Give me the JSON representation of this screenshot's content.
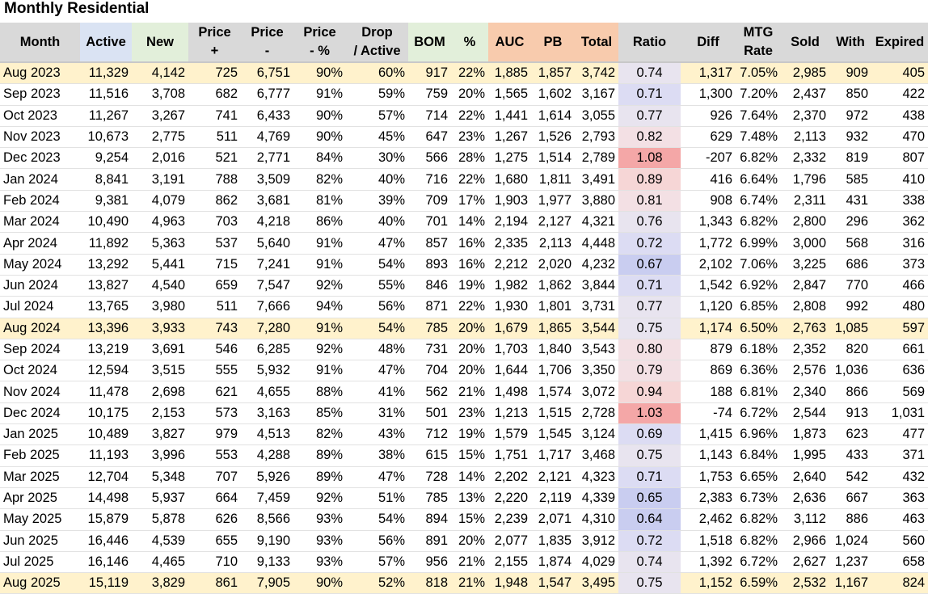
{
  "title": "Monthly Residential",
  "headers": {
    "month": "Month",
    "active": "Active",
    "new": "New",
    "price_plus": [
      "Price",
      "+"
    ],
    "price_minus": [
      "Price",
      "-"
    ],
    "price_pct": [
      "Price",
      "- %"
    ],
    "drop_active": [
      "Drop",
      "/ Active"
    ],
    "bom": "BOM",
    "pct": "%",
    "auc": "AUC",
    "pb": "PB",
    "total": "Total",
    "ratio": "Ratio",
    "diff": "Diff",
    "mtg_rate": [
      "MTG",
      "Rate"
    ],
    "sold": "Sold",
    "with": "With",
    "expired": "Expired"
  },
  "colors": {
    "highlight_row": "#fff2cc",
    "ratio_low": "#c9cdf0",
    "ratio_mid": "#e8e4ef",
    "ratio_high": "#f4a7a7"
  },
  "rows": [
    {
      "month": "Aug 2023",
      "active": "11,329",
      "new": "4,142",
      "price_plus": "725",
      "price_minus": "6,751",
      "price_pct": "90%",
      "drop_active": "60%",
      "bom": "917",
      "pct": "22%",
      "auc": "1,885",
      "pb": "1,857",
      "total": "3,742",
      "ratio": "0.74",
      "diff": "1,317",
      "mtg_rate": "7.05%",
      "sold": "2,985",
      "with": "909",
      "expired": "405",
      "highlight": true
    },
    {
      "month": "Sep 2023",
      "active": "11,516",
      "new": "3,708",
      "price_plus": "682",
      "price_minus": "6,777",
      "price_pct": "91%",
      "drop_active": "59%",
      "bom": "759",
      "pct": "20%",
      "auc": "1,565",
      "pb": "1,602",
      "total": "3,167",
      "ratio": "0.71",
      "diff": "1,300",
      "mtg_rate": "7.20%",
      "sold": "2,437",
      "with": "850",
      "expired": "422"
    },
    {
      "month": "Oct 2023",
      "active": "11,267",
      "new": "3,267",
      "price_plus": "741",
      "price_minus": "6,433",
      "price_pct": "90%",
      "drop_active": "57%",
      "bom": "714",
      "pct": "22%",
      "auc": "1,441",
      "pb": "1,614",
      "total": "3,055",
      "ratio": "0.77",
      "diff": "926",
      "mtg_rate": "7.64%",
      "sold": "2,370",
      "with": "972",
      "expired": "438"
    },
    {
      "month": "Nov 2023",
      "active": "10,673",
      "new": "2,775",
      "price_plus": "511",
      "price_minus": "4,769",
      "price_pct": "90%",
      "drop_active": "45%",
      "bom": "647",
      "pct": "23%",
      "auc": "1,267",
      "pb": "1,526",
      "total": "2,793",
      "ratio": "0.82",
      "diff": "629",
      "mtg_rate": "7.48%",
      "sold": "2,113",
      "with": "932",
      "expired": "470"
    },
    {
      "month": "Dec 2023",
      "active": "9,254",
      "new": "2,016",
      "price_plus": "521",
      "price_minus": "2,771",
      "price_pct": "84%",
      "drop_active": "30%",
      "bom": "566",
      "pct": "28%",
      "auc": "1,275",
      "pb": "1,514",
      "total": "2,789",
      "ratio": "1.08",
      "diff": "-207",
      "mtg_rate": "6.82%",
      "sold": "2,332",
      "with": "819",
      "expired": "807"
    },
    {
      "month": "Jan 2024",
      "active": "8,841",
      "new": "3,191",
      "price_plus": "788",
      "price_minus": "3,509",
      "price_pct": "82%",
      "drop_active": "40%",
      "bom": "716",
      "pct": "22%",
      "auc": "1,680",
      "pb": "1,811",
      "total": "3,491",
      "ratio": "0.89",
      "diff": "416",
      "mtg_rate": "6.64%",
      "sold": "1,796",
      "with": "585",
      "expired": "410"
    },
    {
      "month": "Feb 2024",
      "active": "9,381",
      "new": "4,079",
      "price_plus": "862",
      "price_minus": "3,681",
      "price_pct": "81%",
      "drop_active": "39%",
      "bom": "709",
      "pct": "17%",
      "auc": "1,903",
      "pb": "1,977",
      "total": "3,880",
      "ratio": "0.81",
      "diff": "908",
      "mtg_rate": "6.74%",
      "sold": "2,311",
      "with": "431",
      "expired": "338"
    },
    {
      "month": "Mar 2024",
      "active": "10,490",
      "new": "4,963",
      "price_plus": "703",
      "price_minus": "4,218",
      "price_pct": "86%",
      "drop_active": "40%",
      "bom": "701",
      "pct": "14%",
      "auc": "2,194",
      "pb": "2,127",
      "total": "4,321",
      "ratio": "0.76",
      "diff": "1,343",
      "mtg_rate": "6.82%",
      "sold": "2,800",
      "with": "296",
      "expired": "362"
    },
    {
      "month": "Apr 2024",
      "active": "11,892",
      "new": "5,363",
      "price_plus": "537",
      "price_minus": "5,640",
      "price_pct": "91%",
      "drop_active": "47%",
      "bom": "857",
      "pct": "16%",
      "auc": "2,335",
      "pb": "2,113",
      "total": "4,448",
      "ratio": "0.72",
      "diff": "1,772",
      "mtg_rate": "6.99%",
      "sold": "3,000",
      "with": "568",
      "expired": "316"
    },
    {
      "month": "May 2024",
      "active": "13,292",
      "new": "5,441",
      "price_plus": "715",
      "price_minus": "7,241",
      "price_pct": "91%",
      "drop_active": "54%",
      "bom": "893",
      "pct": "16%",
      "auc": "2,212",
      "pb": "2,020",
      "total": "4,232",
      "ratio": "0.67",
      "diff": "2,102",
      "mtg_rate": "7.06%",
      "sold": "3,225",
      "with": "686",
      "expired": "373"
    },
    {
      "month": "Jun 2024",
      "active": "13,827",
      "new": "4,540",
      "price_plus": "659",
      "price_minus": "7,547",
      "price_pct": "92%",
      "drop_active": "55%",
      "bom": "846",
      "pct": "19%",
      "auc": "1,982",
      "pb": "1,862",
      "total": "3,844",
      "ratio": "0.71",
      "diff": "1,542",
      "mtg_rate": "6.92%",
      "sold": "2,847",
      "with": "770",
      "expired": "466"
    },
    {
      "month": "Jul 2024",
      "active": "13,765",
      "new": "3,980",
      "price_plus": "511",
      "price_minus": "7,666",
      "price_pct": "94%",
      "drop_active": "56%",
      "bom": "871",
      "pct": "22%",
      "auc": "1,930",
      "pb": "1,801",
      "total": "3,731",
      "ratio": "0.77",
      "diff": "1,120",
      "mtg_rate": "6.85%",
      "sold": "2,808",
      "with": "992",
      "expired": "480"
    },
    {
      "month": "Aug 2024",
      "active": "13,396",
      "new": "3,933",
      "price_plus": "743",
      "price_minus": "7,280",
      "price_pct": "91%",
      "drop_active": "54%",
      "bom": "785",
      "pct": "20%",
      "auc": "1,679",
      "pb": "1,865",
      "total": "3,544",
      "ratio": "0.75",
      "diff": "1,174",
      "mtg_rate": "6.50%",
      "sold": "2,763",
      "with": "1,085",
      "expired": "597",
      "highlight": true
    },
    {
      "month": "Sep 2024",
      "active": "13,219",
      "new": "3,691",
      "price_plus": "546",
      "price_minus": "6,285",
      "price_pct": "92%",
      "drop_active": "48%",
      "bom": "731",
      "pct": "20%",
      "auc": "1,703",
      "pb": "1,840",
      "total": "3,543",
      "ratio": "0.80",
      "diff": "879",
      "mtg_rate": "6.18%",
      "sold": "2,352",
      "with": "820",
      "expired": "661"
    },
    {
      "month": "Oct 2024",
      "active": "12,594",
      "new": "3,515",
      "price_plus": "555",
      "price_minus": "5,932",
      "price_pct": "91%",
      "drop_active": "47%",
      "bom": "704",
      "pct": "20%",
      "auc": "1,644",
      "pb": "1,706",
      "total": "3,350",
      "ratio": "0.79",
      "diff": "869",
      "mtg_rate": "6.36%",
      "sold": "2,576",
      "with": "1,036",
      "expired": "636"
    },
    {
      "month": "Nov 2024",
      "active": "11,478",
      "new": "2,698",
      "price_plus": "621",
      "price_minus": "4,655",
      "price_pct": "88%",
      "drop_active": "41%",
      "bom": "562",
      "pct": "21%",
      "auc": "1,498",
      "pb": "1,574",
      "total": "3,072",
      "ratio": "0.94",
      "diff": "188",
      "mtg_rate": "6.81%",
      "sold": "2,340",
      "with": "866",
      "expired": "569"
    },
    {
      "month": "Dec 2024",
      "active": "10,175",
      "new": "2,153",
      "price_plus": "573",
      "price_minus": "3,163",
      "price_pct": "85%",
      "drop_active": "31%",
      "bom": "501",
      "pct": "23%",
      "auc": "1,213",
      "pb": "1,515",
      "total": "2,728",
      "ratio": "1.03",
      "diff": "-74",
      "mtg_rate": "6.72%",
      "sold": "2,544",
      "with": "913",
      "expired": "1,031"
    },
    {
      "month": "Jan 2025",
      "active": "10,489",
      "new": "3,827",
      "price_plus": "979",
      "price_minus": "4,513",
      "price_pct": "82%",
      "drop_active": "43%",
      "bom": "712",
      "pct": "19%",
      "auc": "1,579",
      "pb": "1,545",
      "total": "3,124",
      "ratio": "0.69",
      "diff": "1,415",
      "mtg_rate": "6.96%",
      "sold": "1,873",
      "with": "623",
      "expired": "477"
    },
    {
      "month": "Feb 2025",
      "active": "11,193",
      "new": "3,996",
      "price_plus": "553",
      "price_minus": "4,288",
      "price_pct": "89%",
      "drop_active": "38%",
      "bom": "615",
      "pct": "15%",
      "auc": "1,751",
      "pb": "1,717",
      "total": "3,468",
      "ratio": "0.75",
      "diff": "1,143",
      "mtg_rate": "6.84%",
      "sold": "1,995",
      "with": "433",
      "expired": "371"
    },
    {
      "month": "Mar 2025",
      "active": "12,704",
      "new": "5,348",
      "price_plus": "707",
      "price_minus": "5,926",
      "price_pct": "89%",
      "drop_active": "47%",
      "bom": "728",
      "pct": "14%",
      "auc": "2,202",
      "pb": "2,121",
      "total": "4,323",
      "ratio": "0.71",
      "diff": "1,753",
      "mtg_rate": "6.65%",
      "sold": "2,640",
      "with": "542",
      "expired": "432"
    },
    {
      "month": "Apr 2025",
      "active": "14,498",
      "new": "5,937",
      "price_plus": "664",
      "price_minus": "7,459",
      "price_pct": "92%",
      "drop_active": "51%",
      "bom": "785",
      "pct": "13%",
      "auc": "2,220",
      "pb": "2,119",
      "total": "4,339",
      "ratio": "0.65",
      "diff": "2,383",
      "mtg_rate": "6.73%",
      "sold": "2,636",
      "with": "667",
      "expired": "363"
    },
    {
      "month": "May 2025",
      "active": "15,879",
      "new": "5,878",
      "price_plus": "626",
      "price_minus": "8,566",
      "price_pct": "93%",
      "drop_active": "54%",
      "bom": "894",
      "pct": "15%",
      "auc": "2,239",
      "pb": "2,071",
      "total": "4,310",
      "ratio": "0.64",
      "diff": "2,462",
      "mtg_rate": "6.82%",
      "sold": "3,112",
      "with": "886",
      "expired": "463"
    },
    {
      "month": "Jun 2025",
      "active": "16,446",
      "new": "4,539",
      "price_plus": "655",
      "price_minus": "9,190",
      "price_pct": "93%",
      "drop_active": "56%",
      "bom": "891",
      "pct": "20%",
      "auc": "2,077",
      "pb": "1,835",
      "total": "3,912",
      "ratio": "0.72",
      "diff": "1,518",
      "mtg_rate": "6.82%",
      "sold": "2,966",
      "with": "1,024",
      "expired": "560"
    },
    {
      "month": "Jul 2025",
      "active": "16,146",
      "new": "4,465",
      "price_plus": "710",
      "price_minus": "9,133",
      "price_pct": "93%",
      "drop_active": "57%",
      "bom": "956",
      "pct": "21%",
      "auc": "2,155",
      "pb": "1,874",
      "total": "4,029",
      "ratio": "0.74",
      "diff": "1,392",
      "mtg_rate": "6.72%",
      "sold": "2,627",
      "with": "1,237",
      "expired": "658"
    },
    {
      "month": "Aug 2025",
      "active": "15,119",
      "new": "3,829",
      "price_plus": "861",
      "price_minus": "7,905",
      "price_pct": "90%",
      "drop_active": "52%",
      "bom": "818",
      "pct": "21%",
      "auc": "1,948",
      "pb": "1,547",
      "total": "3,495",
      "ratio": "0.75",
      "diff": "1,152",
      "mtg_rate": "6.59%",
      "sold": "2,532",
      "with": "1,167",
      "expired": "824",
      "highlight": true
    }
  ]
}
